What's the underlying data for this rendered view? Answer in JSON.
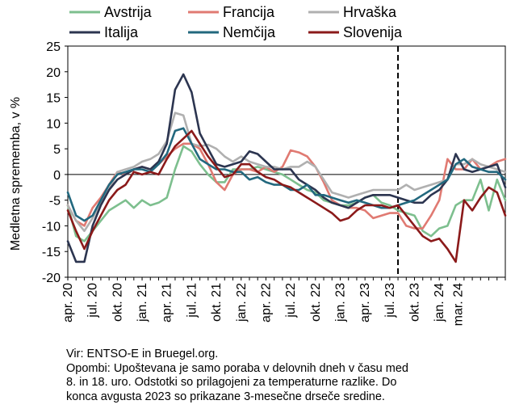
{
  "chart_data": {
    "type": "line",
    "ylabel": "Medletna sprememba, v %",
    "ylim": [
      -20,
      25
    ],
    "yticks": [
      -20,
      -15,
      -10,
      -5,
      0,
      5,
      10,
      15,
      20,
      25
    ],
    "grid": false,
    "legend_position": "top",
    "x_start": "2020-04",
    "x_tick_labels": [
      {
        "label": "apr. 20",
        "month": "2020-04"
      },
      {
        "label": "jul. 20",
        "month": "2020-07"
      },
      {
        "label": "okt. 20",
        "month": "2020-10"
      },
      {
        "label": "jan. 21",
        "month": "2021-01"
      },
      {
        "label": "apr. 21",
        "month": "2021-04"
      },
      {
        "label": "jul. 21",
        "month": "2021-07"
      },
      {
        "label": "okt. 21",
        "month": "2021-10"
      },
      {
        "label": "jan. 22",
        "month": "2022-01"
      },
      {
        "label": "apr. 22",
        "month": "2022-04"
      },
      {
        "label": "jul. 22",
        "month": "2022-07"
      },
      {
        "label": "okt. 22",
        "month": "2022-10"
      },
      {
        "label": "jan. 23",
        "month": "2023-01"
      },
      {
        "label": "apr. 23",
        "month": "2023-04"
      },
      {
        "label": "jul. 23",
        "month": "2023-07"
      },
      {
        "label": "okt. 23",
        "month": "2023-10"
      },
      {
        "label": "jan. 24",
        "month": "2024-01"
      },
      {
        "label": "mar. 24",
        "month": "2024-03"
      }
    ],
    "vertical_marker": {
      "month": "2023-08",
      "style": "dashed"
    },
    "series": [
      {
        "name": "Avstrija",
        "color": "#7dbf8e",
        "values": [
          -6,
          -12,
          -13,
          -11,
          -9,
          -7,
          -6,
          -5,
          -6.5,
          -5,
          -6,
          -5.5,
          -4.5,
          1,
          5.5,
          4.5,
          2,
          0,
          -1.5,
          -1.5,
          1,
          1,
          1,
          1.5,
          1,
          0.5,
          0,
          -1,
          -2,
          -3,
          -3.5,
          -5,
          -5.5,
          -6,
          -6,
          -5.5,
          -4.5,
          -4,
          -5.5,
          -6,
          -7,
          -7.5,
          -8,
          -11,
          -12,
          -10.5,
          -10,
          -6,
          -5,
          -5,
          -1,
          -7,
          -1,
          -5
        ]
      },
      {
        "name": "Francija",
        "color": "#e07a72",
        "values": [
          -6,
          -9,
          -10,
          -6.5,
          -4.5,
          -2,
          0.5,
          0,
          1,
          1.5,
          1,
          2,
          3.5,
          5,
          6,
          6,
          5,
          2,
          -1.5,
          -3,
          0,
          1,
          1,
          0.5,
          1.5,
          0.5,
          1.5,
          4.7,
          4.3,
          3.5,
          1.5,
          -1.5,
          -5,
          -6,
          -6.5,
          -6.5,
          -7,
          -8.5,
          -8,
          -7.5,
          -7.5,
          -10,
          -10.5,
          -10.5,
          -8,
          -5,
          3,
          1,
          1,
          3,
          1,
          1.5,
          2.5,
          3
        ]
      },
      {
        "name": "Hrvaška",
        "color": "#b0b0b0",
        "values": [
          -6,
          -9,
          -11,
          -8.5,
          -5.5,
          -3,
          0.5,
          1,
          1.5,
          2.5,
          3,
          4,
          6.5,
          12,
          11.5,
          6,
          5.5,
          5.8,
          5,
          3.5,
          2.5,
          3.5,
          2.5,
          2,
          1.5,
          1.5,
          1,
          1.5,
          1.5,
          2.5,
          1.5,
          -1,
          -3.5,
          -4,
          -4.5,
          -4,
          -3.5,
          -3,
          -3,
          -3,
          -3,
          -2,
          -3,
          -2.5,
          -2,
          -1.5,
          -1,
          2,
          2,
          3,
          2,
          1.5,
          1,
          0.5
        ]
      },
      {
        "name": "Italija",
        "color": "#2c3550",
        "values": [
          -13,
          -17,
          -17,
          -10,
          -6,
          -3,
          -1,
          0,
          1,
          1.5,
          1,
          2.5,
          6,
          16.5,
          19.5,
          16,
          8,
          5,
          2,
          1.5,
          2,
          2.5,
          4.5,
          4,
          2.5,
          1,
          1,
          1,
          -1,
          -2,
          -3,
          -4.5,
          -5.5,
          -6,
          -6.5,
          -5.5,
          -4.5,
          -4,
          -4,
          -4,
          -4.5,
          -5,
          -5.5,
          -5.5,
          -4,
          -3,
          -1,
          4,
          1,
          0.5,
          1,
          1.5,
          2,
          -2.5
        ]
      },
      {
        "name": "Nemčija",
        "color": "#22687e",
        "values": [
          -3.5,
          -8,
          -9,
          -8,
          -5,
          -2,
          0,
          0.5,
          1,
          1,
          0.5,
          2,
          4,
          8.5,
          9,
          6,
          3,
          2,
          1,
          1,
          0.5,
          0.5,
          -1,
          -0.5,
          -1.5,
          -2,
          -2,
          -3,
          -3,
          -2,
          -4,
          -4,
          -4.5,
          -5,
          -5.5,
          -5,
          -5.5,
          -6,
          -6.5,
          -6.5,
          -6,
          -5.5,
          -5,
          -4,
          -3,
          -2,
          -1,
          2,
          3,
          1.5,
          1,
          0.5,
          0.5,
          -1
        ]
      },
      {
        "name": "Slovenija",
        "color": "#8b1a1a",
        "values": [
          -7,
          -11,
          -14.5,
          -11,
          -8,
          -5,
          -3,
          -2,
          0.5,
          0,
          0.5,
          0,
          3,
          5.5,
          7,
          8.5,
          6,
          3.5,
          1.5,
          -0.5,
          0,
          2,
          2,
          0.5,
          -0.5,
          -1,
          -2,
          -2.5,
          -3.5,
          -4.5,
          -5.5,
          -6.5,
          -7.5,
          -9,
          -8.5,
          -7,
          -6,
          -6,
          -6,
          -6.5,
          -6,
          -8,
          -10,
          -12,
          -13,
          -12.5,
          -14.5,
          -17,
          -5,
          -7,
          -4.5,
          -2.5,
          -3.5,
          -8
        ]
      }
    ]
  },
  "notes": {
    "source": "Vir: ENTSO-E in Bruegel.org.",
    "line1": "Opombi: Upoštevana je samo poraba v delovnih dneh v času med",
    "line2": "8. in 18. uro. Odstotki so prilagojeni za temperaturne razlike. Do",
    "line3": "konca avgusta 2023 so prikazane 3-mesečne drseče sredine."
  }
}
